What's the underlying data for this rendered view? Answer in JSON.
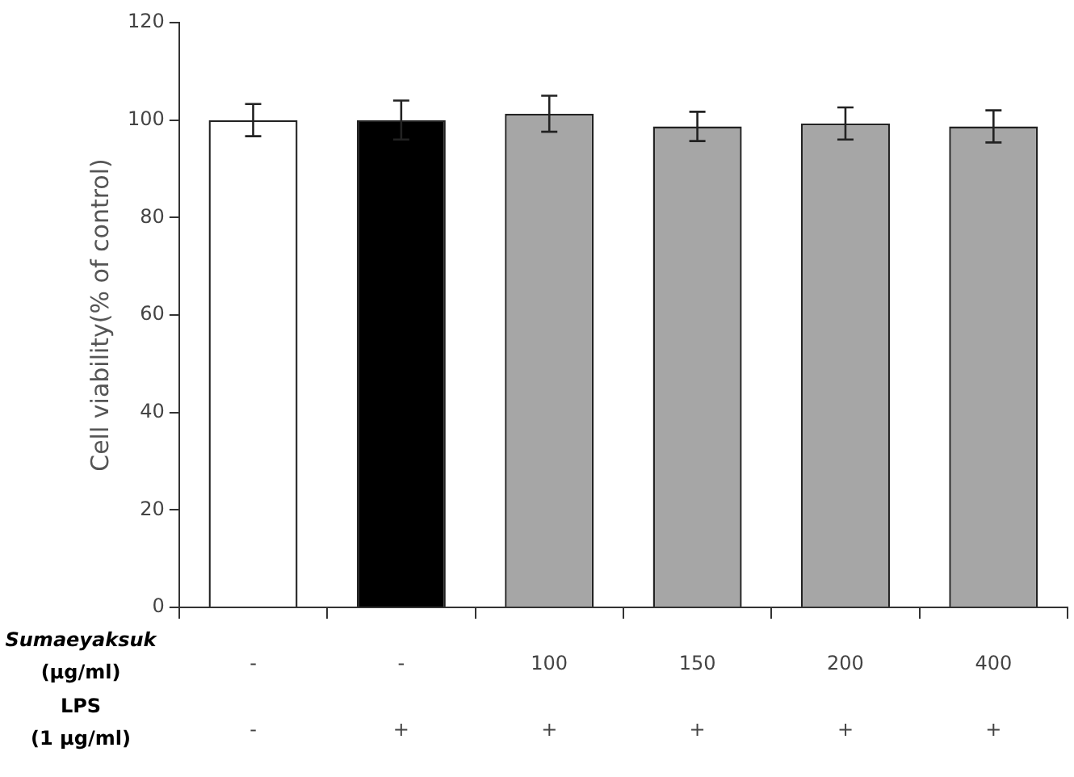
{
  "chart_data": {
    "type": "bar",
    "categories": [
      "-\n-",
      "-\n+",
      "100\n+",
      "150\n+",
      "200\n+",
      "400\n+"
    ],
    "values": [
      100,
      100,
      101.3,
      98.7,
      99.3,
      98.7
    ],
    "errors": [
      3.3,
      4,
      3.7,
      3,
      3.3,
      3.3
    ],
    "colors": [
      "#ffffff",
      "#000000",
      "#a6a6a6",
      "#a6a6a6",
      "#a6a6a6",
      "#a6a6a6"
    ],
    "ylabel": "Cell viability(% of control)",
    "ylim": [
      0,
      120
    ],
    "yticks": [
      0,
      20,
      40,
      60,
      80,
      100,
      120
    ],
    "annotations": [
      "Sumaeyaksuk (μg/ml)",
      "LPS (1 μg/ml)"
    ]
  }
}
